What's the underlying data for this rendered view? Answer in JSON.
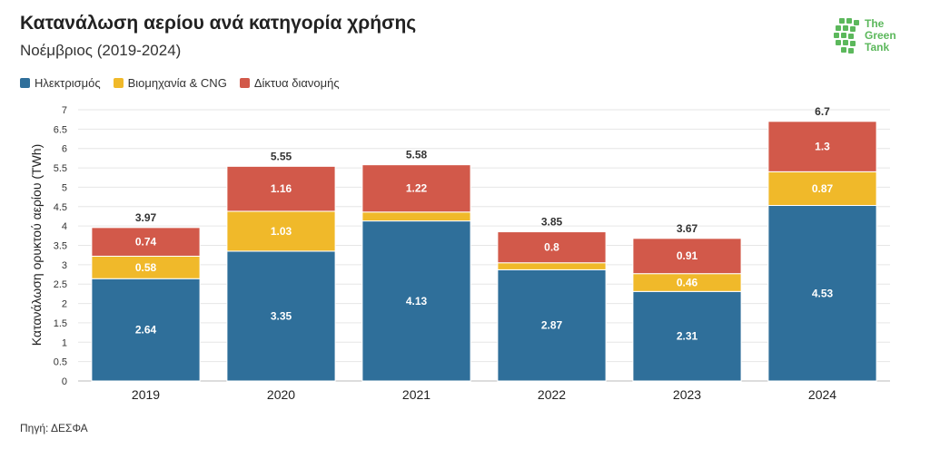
{
  "header": {
    "title": "Κατανάλωση αερίου ανά κατηγορία χρήσης",
    "subtitle": "Νοέμβριος (2019-2024)"
  },
  "logo": {
    "line1": "The",
    "line2": "Green",
    "line3": "Tank",
    "color": "#5cb85c"
  },
  "source": "Πηγή: ΔΕΣΦΑ",
  "chart_data": {
    "type": "bar",
    "stacked": true,
    "categories": [
      "2019",
      "2020",
      "2021",
      "2022",
      "2023",
      "2024"
    ],
    "series": [
      {
        "name": "Ηλεκτρισμός",
        "color": "#2f6f9a",
        "values": [
          2.64,
          3.35,
          4.13,
          2.87,
          2.31,
          4.53
        ],
        "labels": [
          "2.64",
          "3.35",
          "4.13",
          "2.87",
          "2.31",
          "4.53"
        ]
      },
      {
        "name": "Βιομηχανία & CNG",
        "color": "#f0b92a",
        "values": [
          0.58,
          1.03,
          0.23,
          0.18,
          0.46,
          0.87
        ],
        "labels": [
          "0.58",
          "1.03",
          "",
          "",
          "0.46",
          "0.87"
        ]
      },
      {
        "name": "Δίκτυα διανομής",
        "color": "#d2594a",
        "values": [
          0.74,
          1.16,
          1.22,
          0.8,
          0.91,
          1.3
        ],
        "labels": [
          "0.74",
          "1.16",
          "1.22",
          "0.8",
          "0.91",
          "1.3"
        ]
      }
    ],
    "totals": [
      "3.97",
      "5.55",
      "5.58",
      "3.85",
      "3.67",
      "6.7"
    ],
    "ylabel": "Κατανάλωση ορυκτού αερίου (TWh)",
    "xlabel": "",
    "ylim": [
      0,
      7
    ],
    "yticks": [
      "0",
      "0.5",
      "1",
      "1.5",
      "2",
      "2.5",
      "3",
      "3.5",
      "4",
      "4.5",
      "5",
      "5.5",
      "6",
      "6.5",
      "7"
    ],
    "grid": true,
    "legend_position": "top-left"
  }
}
